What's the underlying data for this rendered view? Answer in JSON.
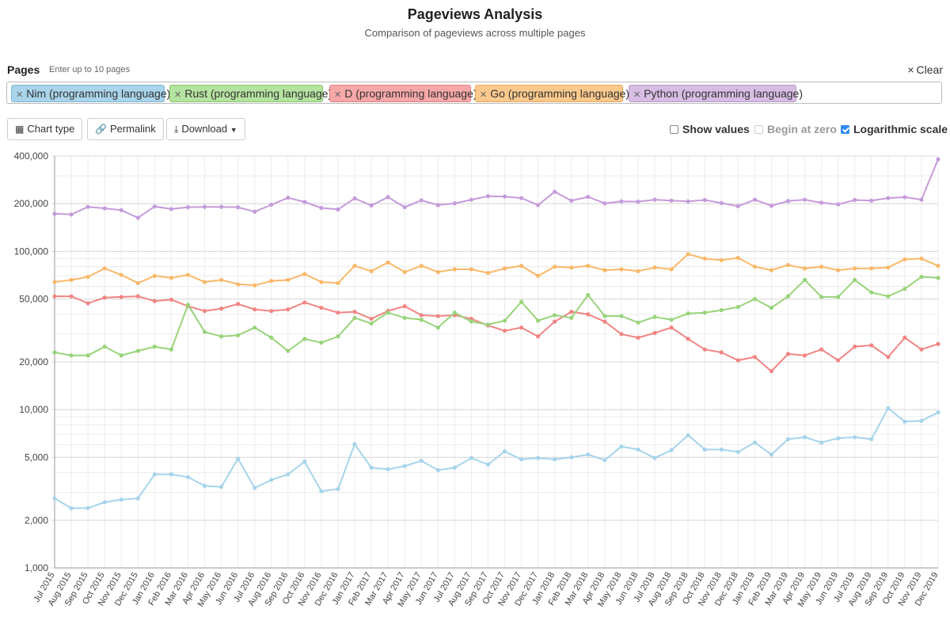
{
  "header": {
    "title": "Pageviews Analysis",
    "subtitle": "Comparison of pageviews across multiple pages"
  },
  "pages": {
    "label": "Pages",
    "hint": "Enter up to 10 pages",
    "clear_label": "Clear",
    "chips": [
      {
        "label": "Nim (programming language)",
        "bg": "#a9d4ea",
        "border": "#7cb7d6"
      },
      {
        "label": "Rust (programming language)",
        "bg": "#b5e3a0",
        "border": "#86c86a"
      },
      {
        "label": "D (programming language)",
        "bg": "#f8a8a8",
        "border": "#e57e7e"
      },
      {
        "label": "Go (programming language)",
        "bg": "#fbc98c",
        "border": "#eaa85a"
      },
      {
        "label": "Python (programming language)",
        "bg": "#d7bde4",
        "border": "#b997cb"
      }
    ]
  },
  "toolbar": {
    "chart_type_label": "Chart type",
    "permalink_label": "Permalink",
    "download_label": "Download",
    "show_values_label": "Show values",
    "begin_at_zero_label": "Begin at zero",
    "log_scale_label": "Logarithmic scale",
    "show_values_checked": false,
    "begin_at_zero_checked": false,
    "log_scale_checked": true
  },
  "chart_data": {
    "type": "line",
    "scale": "log",
    "ylim": [
      1000,
      400000
    ],
    "yticks": [
      1000,
      2000,
      5000,
      10000,
      20000,
      50000,
      100000,
      200000,
      400000
    ],
    "ytick_labels": [
      "1,000",
      "2,000",
      "5,000",
      "10,000",
      "20,000",
      "50,000",
      "100,000",
      "200,000",
      "400,000"
    ],
    "categories": [
      "Jul 2015",
      "Aug 2015",
      "Sep 2015",
      "Oct 2015",
      "Nov 2015",
      "Dec 2015",
      "Jan 2016",
      "Feb 2016",
      "Mar 2016",
      "Apr 2016",
      "May 2016",
      "Jun 2016",
      "Jul 2016",
      "Aug 2016",
      "Sep 2016",
      "Oct 2016",
      "Nov 2016",
      "Dec 2016",
      "Jan 2017",
      "Feb 2017",
      "Mar 2017",
      "Apr 2017",
      "May 2017",
      "Jun 2017",
      "Jul 2017",
      "Aug 2017",
      "Sep 2017",
      "Oct 2017",
      "Nov 2017",
      "Dec 2017",
      "Jan 2018",
      "Feb 2018",
      "Mar 2018",
      "Apr 2018",
      "May 2018",
      "Jun 2018",
      "Jul 2018",
      "Aug 2018",
      "Sep 2018",
      "Oct 2018",
      "Nov 2018",
      "Dec 2018",
      "Jan 2019",
      "Feb 2019",
      "Mar 2019",
      "Apr 2019",
      "May 2019",
      "Jun 2019",
      "Jul 2019",
      "Aug 2019",
      "Sep 2019",
      "Oct 2019",
      "Nov 2019",
      "Dec 2019"
    ],
    "series": [
      {
        "name": "Python (programming language)",
        "color": "#c59bdb",
        "values": [
          173000,
          171000,
          191000,
          187000,
          182000,
          163000,
          192000,
          185000,
          190000,
          191000,
          191000,
          190000,
          178000,
          197000,
          218000,
          205000,
          188000,
          184000,
          216000,
          195000,
          220000,
          190000,
          210000,
          196000,
          201000,
          212000,
          223000,
          222000,
          217000,
          196000,
          238000,
          209000,
          221000,
          201000,
          207000,
          206000,
          212000,
          209000,
          207000,
          211000,
          202000,
          193000,
          212000,
          194000,
          208000,
          212000,
          203000,
          198000,
          211000,
          209000,
          217000,
          220000,
          212000,
          382000
        ]
      },
      {
        "name": "Go (programming language)",
        "color": "#f9b869",
        "values": [
          64000,
          66000,
          69000,
          78000,
          71000,
          63000,
          70000,
          68000,
          71000,
          64000,
          66000,
          62000,
          61000,
          65000,
          66000,
          72000,
          64000,
          63000,
          81000,
          75000,
          85000,
          74000,
          81000,
          74000,
          77000,
          77000,
          73000,
          78000,
          81000,
          70000,
          80000,
          79000,
          81000,
          76000,
          77000,
          75000,
          79000,
          77000,
          96000,
          90000,
          88000,
          91000,
          80000,
          76000,
          82000,
          78000,
          80000,
          76000,
          78000,
          78000,
          79000,
          89000,
          90000,
          81000
        ]
      },
      {
        "name": "D (programming language)",
        "color": "#f08584",
        "values": [
          52000,
          52000,
          47000,
          51000,
          51500,
          52000,
          48500,
          49500,
          45000,
          42000,
          43500,
          46500,
          43000,
          42000,
          43000,
          47500,
          44000,
          41000,
          41500,
          37500,
          42000,
          45000,
          39500,
          39000,
          39500,
          37500,
          34000,
          31500,
          33000,
          29000,
          36000,
          41500,
          40000,
          36000,
          30000,
          28500,
          30500,
          33000,
          28000,
          24000,
          23000,
          20500,
          21500,
          17500,
          22500,
          22000,
          24000,
          20500,
          25000,
          25500,
          21500,
          28500,
          24000,
          26000
        ]
      },
      {
        "name": "Rust (programming language)",
        "color": "#98d47a",
        "values": [
          23000,
          22000,
          22000,
          25000,
          22000,
          23500,
          25000,
          24000,
          46000,
          31000,
          29000,
          29500,
          33000,
          28500,
          23500,
          28000,
          26500,
          29000,
          38000,
          35000,
          41000,
          38000,
          37000,
          33000,
          41000,
          36000,
          34500,
          36500,
          48000,
          36500,
          39500,
          38000,
          53000,
          39000,
          39000,
          35500,
          38500,
          37000,
          40500,
          41000,
          42500,
          44500,
          50000,
          44000,
          52000,
          66000,
          51500,
          51500,
          66000,
          55000,
          52000,
          58000,
          69000,
          68000
        ]
      },
      {
        "name": "Nim (programming language)",
        "color": "#a6d4ea",
        "values": [
          2750,
          2380,
          2390,
          2600,
          2700,
          2750,
          3900,
          3900,
          3750,
          3300,
          3250,
          4900,
          3200,
          3600,
          3900,
          4700,
          3050,
          3150,
          6050,
          4300,
          4200,
          4400,
          4750,
          4150,
          4300,
          4950,
          4500,
          5450,
          4850,
          4950,
          4850,
          5000,
          5200,
          4800,
          5850,
          5600,
          4950,
          5550,
          6900,
          5600,
          5600,
          5400,
          6200,
          5200,
          6500,
          6700,
          6200,
          6600,
          6700,
          6500,
          10200,
          8400,
          8500,
          9600
        ]
      }
    ]
  }
}
